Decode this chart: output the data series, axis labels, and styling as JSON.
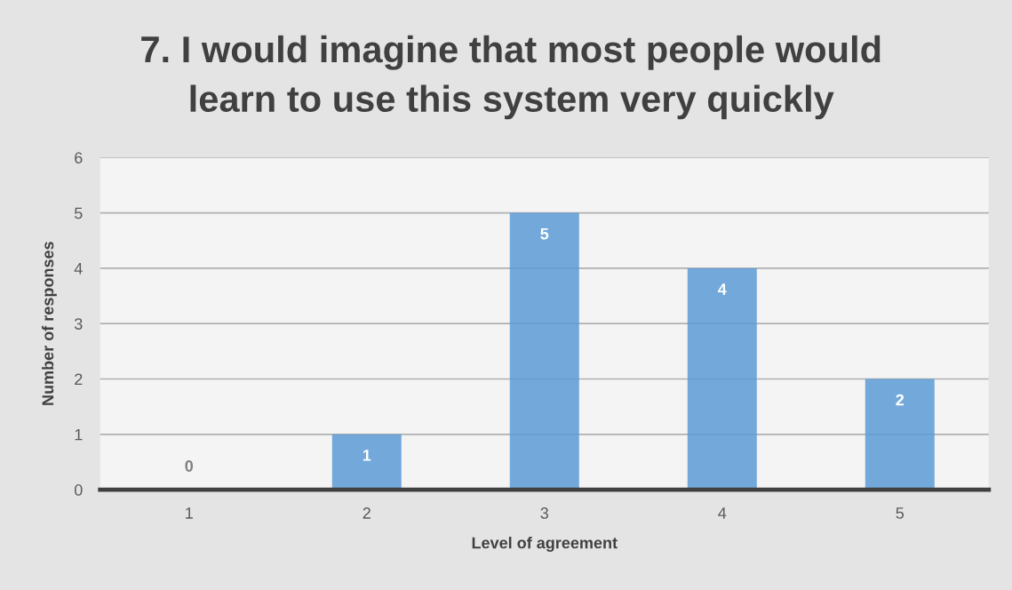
{
  "chart_data": {
    "type": "bar",
    "title": "7. I would imagine that most people would\nlearn to use this system very quickly",
    "xlabel": "Level of agreement",
    "ylabel": "Number of responses",
    "categories": [
      "1",
      "2",
      "3",
      "4",
      "5"
    ],
    "values": [
      0,
      1,
      5,
      4,
      2
    ],
    "color": "#5b9bd5",
    "ylim": [
      0,
      6
    ],
    "yticks": [
      0,
      1,
      2,
      3,
      4,
      5,
      6
    ],
    "grid": "y",
    "data_labels": true
  }
}
